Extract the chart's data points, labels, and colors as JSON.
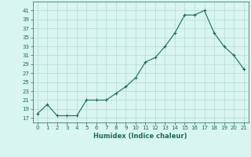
{
  "x": [
    0,
    1,
    2,
    3,
    4,
    5,
    6,
    7,
    8,
    9,
    10,
    11,
    12,
    13,
    14,
    15,
    16,
    17,
    18,
    19,
    20,
    21
  ],
  "y": [
    18,
    20,
    17.5,
    17.5,
    17.5,
    21,
    21,
    21,
    22.5,
    24,
    26,
    29.5,
    30.5,
    33,
    36,
    40,
    40,
    41,
    36,
    33,
    31,
    28
  ],
  "line_color": "#1a6b5a",
  "marker": "+",
  "bg_color": "#d8f5f0",
  "grid_color": "#b8d8d4",
  "xlabel": "Humidex (Indice chaleur)",
  "ylim": [
    16,
    43
  ],
  "xlim": [
    -0.5,
    21.5
  ],
  "yticks": [
    17,
    19,
    21,
    23,
    25,
    27,
    29,
    31,
    33,
    35,
    37,
    39,
    41
  ],
  "xticks": [
    0,
    1,
    2,
    3,
    4,
    5,
    6,
    7,
    8,
    9,
    10,
    11,
    12,
    13,
    14,
    15,
    16,
    17,
    18,
    19,
    20,
    21
  ]
}
